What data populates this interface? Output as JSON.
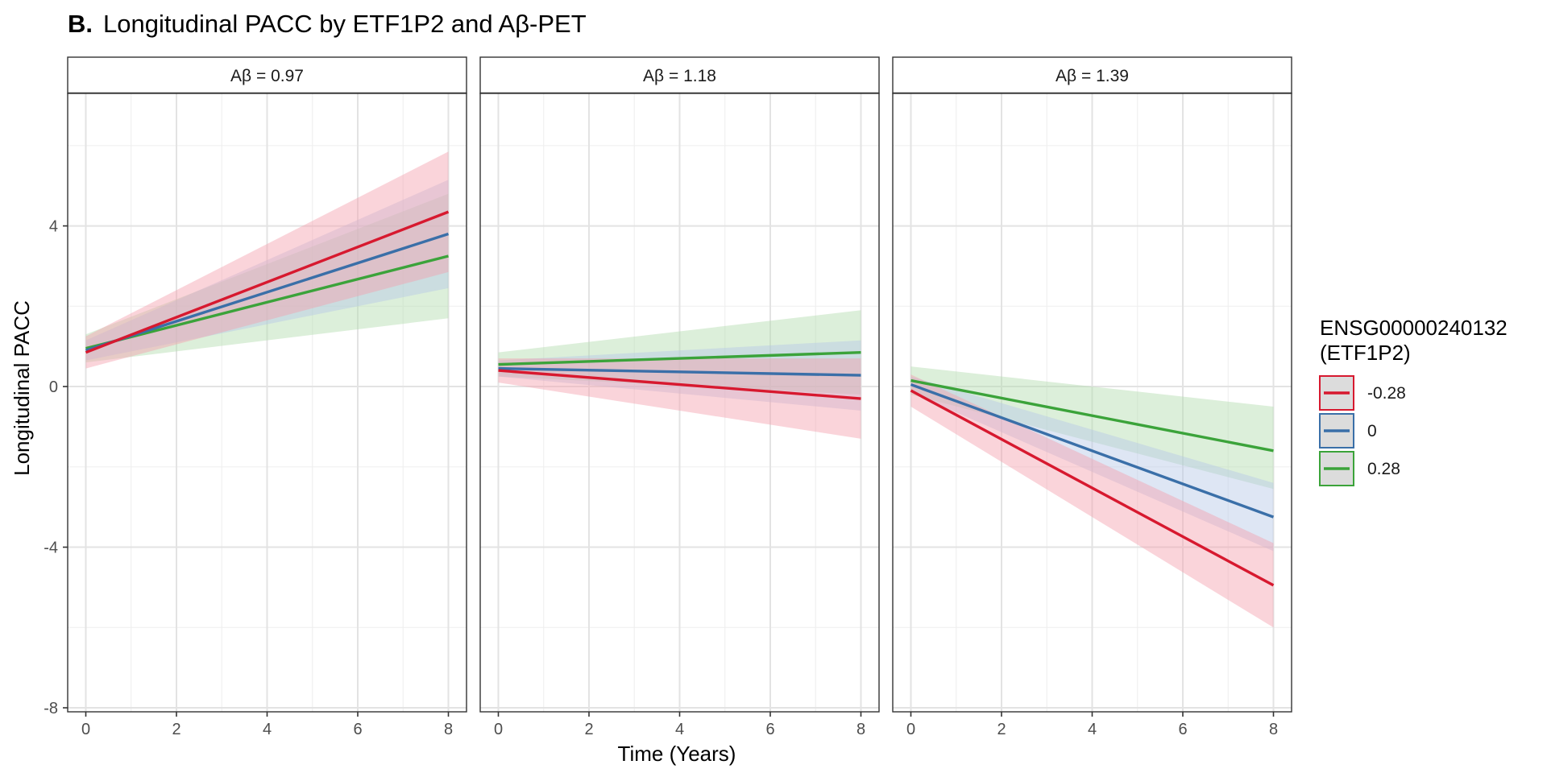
{
  "chart_data": {
    "type": "line",
    "title_prefix": "B.",
    "title": "Longitudinal PACC by ETF1P2 and Aβ-PET",
    "xlabel": "Time (Years)",
    "ylabel": "Longitudinal PACC",
    "xlim": [
      -0.4,
      8.4
    ],
    "ylim": [
      -8.1,
      7.3
    ],
    "x_ticks": [
      0,
      2,
      4,
      6,
      8
    ],
    "y_ticks": [
      4,
      0,
      -4,
      -8
    ],
    "grid": true,
    "legend": {
      "title_line1": "ENSG00000240132",
      "title_line2": "(ETF1P2)",
      "placement": "right"
    },
    "series_meta": [
      {
        "name": "-0.28",
        "line_color": "#d7192f",
        "fill_color": "#f4a0ad"
      },
      {
        "name": "0",
        "line_color": "#3a6fa8",
        "fill_color": "#b5c8e6"
      },
      {
        "name": "0.28",
        "line_color": "#3ba33a",
        "fill_color": "#b2dcae"
      }
    ],
    "panels": [
      {
        "strip": "Aβ = 0.97",
        "series": [
          {
            "name": "-0.28",
            "x": [
              0,
              8
            ],
            "y": [
              0.85,
              4.35
            ],
            "ci_low": [
              0.45,
              2.85
            ],
            "ci_high": [
              1.25,
              5.85
            ]
          },
          {
            "name": "0",
            "x": [
              0,
              8
            ],
            "y": [
              0.9,
              3.8
            ],
            "ci_low": [
              0.65,
              2.45
            ],
            "ci_high": [
              1.15,
              5.15
            ]
          },
          {
            "name": "0.28",
            "x": [
              0,
              8
            ],
            "y": [
              0.95,
              3.25
            ],
            "ci_low": [
              0.6,
              1.7
            ],
            "ci_high": [
              1.3,
              4.8
            ]
          }
        ]
      },
      {
        "strip": "Aβ = 1.18",
        "series": [
          {
            "name": "-0.28",
            "x": [
              0,
              8
            ],
            "y": [
              0.4,
              -0.3
            ],
            "ci_low": [
              0.1,
              -1.3
            ],
            "ci_high": [
              0.7,
              0.7
            ]
          },
          {
            "name": "0",
            "x": [
              0,
              8
            ],
            "y": [
              0.45,
              0.28
            ],
            "ci_low": [
              0.25,
              -0.6
            ],
            "ci_high": [
              0.65,
              1.15
            ]
          },
          {
            "name": "0.28",
            "x": [
              0,
              8
            ],
            "y": [
              0.55,
              0.85
            ],
            "ci_low": [
              0.25,
              -0.2
            ],
            "ci_high": [
              0.85,
              1.9
            ]
          }
        ]
      },
      {
        "strip": "Aβ = 1.39",
        "series": [
          {
            "name": "-0.28",
            "x": [
              0,
              8
            ],
            "y": [
              -0.1,
              -4.95
            ],
            "ci_low": [
              -0.5,
              -6.0
            ],
            "ci_high": [
              0.3,
              -3.9
            ]
          },
          {
            "name": "0",
            "x": [
              0,
              8
            ],
            "y": [
              0.05,
              -3.25
            ],
            "ci_low": [
              -0.15,
              -4.1
            ],
            "ci_high": [
              0.25,
              -2.4
            ]
          },
          {
            "name": "0.28",
            "x": [
              0,
              8
            ],
            "y": [
              0.15,
              -1.6
            ],
            "ci_low": [
              -0.2,
              -2.55
            ],
            "ci_high": [
              0.5,
              -0.5
            ]
          }
        ]
      }
    ]
  }
}
